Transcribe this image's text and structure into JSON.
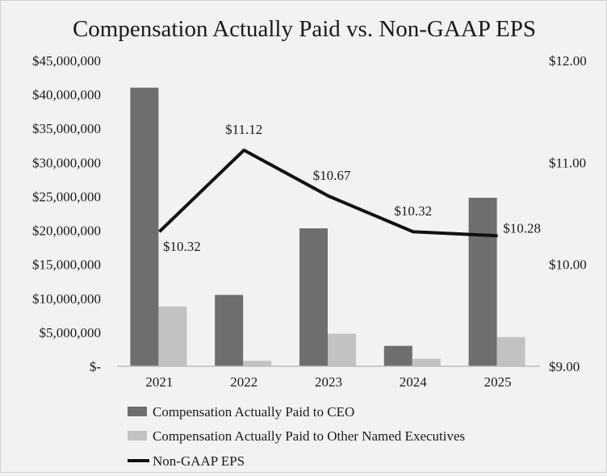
{
  "chart_data": {
    "type": "bar",
    "title": "Compensation Actually Paid vs. Non-GAAP EPS",
    "categories": [
      "2021",
      "2022",
      "2023",
      "2024",
      "2025"
    ],
    "series": [
      {
        "name": "Compensation Actually Paid to CEO",
        "type": "bar",
        "axis": "left",
        "color": "#6e6e70",
        "values": [
          41000000,
          10500000,
          20300000,
          3000000,
          24800000
        ]
      },
      {
        "name": "Compensation Actually Paid to Other Named Executives",
        "type": "bar",
        "axis": "left",
        "color": "#c2c2c4",
        "values": [
          8800000,
          800000,
          4800000,
          1100000,
          4300000
        ]
      },
      {
        "name": "Non-GAAP EPS",
        "type": "line",
        "axis": "right",
        "color": "#111111",
        "values": [
          10.32,
          11.12,
          10.67,
          10.32,
          10.28
        ],
        "labels": [
          "$10.32",
          "$11.12",
          "$10.67",
          "$10.32",
          "$10.28"
        ]
      }
    ],
    "y_left": {
      "min": 0,
      "max": 45000000,
      "ticks": [
        0,
        5000000,
        10000000,
        15000000,
        20000000,
        25000000,
        30000000,
        35000000,
        40000000,
        45000000
      ],
      "tick_labels": [
        "$-",
        "$5,000,000",
        "$10,000,000",
        "$15,000,000",
        "$20,000,000",
        "$25,000,000",
        "$30,000,000",
        "$35,000,000",
        "$40,000,000",
        "$45,000,000"
      ]
    },
    "y_right": {
      "min": 9,
      "max": 12,
      "ticks": [
        9,
        10,
        11,
        12
      ],
      "tick_labels": [
        "$9.00",
        "$10.00",
        "$11.00",
        "$12.00"
      ]
    },
    "legend_position": "bottom-left",
    "grid": false
  }
}
